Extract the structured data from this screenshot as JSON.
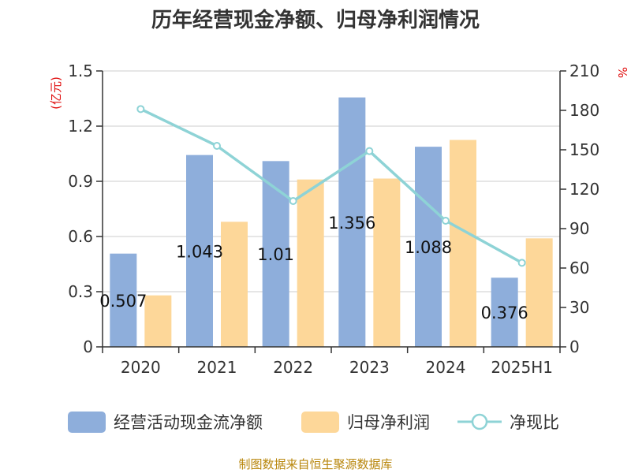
{
  "chart_data": {
    "type": "bar",
    "title": "历年经营现金净额、归母净利润情况",
    "categories": [
      "2020",
      "2021",
      "2022",
      "2023",
      "2024",
      "2025H1"
    ],
    "y_left": {
      "unit": "(亿元)",
      "ylim": [
        0,
        1.5
      ],
      "ticks": [
        "0",
        "0.3",
        "0.6",
        "0.9",
        "1.2",
        "1.5"
      ]
    },
    "y_right": {
      "unit": "%",
      "ylim": [
        0,
        210
      ],
      "ticks": [
        "0",
        "30",
        "60",
        "90",
        "120",
        "150",
        "180",
        "210"
      ]
    },
    "series": [
      {
        "name": "经营活动现金流净额",
        "kind": "bar",
        "axis": "left",
        "color": "#8eaedb",
        "values": [
          0.507,
          1.043,
          1.01,
          1.356,
          1.088,
          0.376
        ],
        "labels": [
          "0.507",
          "1.043",
          "1.01",
          "1.356",
          "1.088",
          "0.376"
        ]
      },
      {
        "name": "归母净利润",
        "kind": "bar",
        "axis": "left",
        "color": "#fdd799",
        "values": [
          0.28,
          0.68,
          0.91,
          0.915,
          1.125,
          0.59
        ]
      },
      {
        "name": "净现比",
        "kind": "line",
        "axis": "right",
        "color": "#8ed3d6",
        "values": [
          181,
          153,
          111,
          149,
          96,
          64
        ]
      }
    ],
    "grid": true,
    "legend": "bottom"
  },
  "source": "制图数据来自恒生聚源数据库"
}
